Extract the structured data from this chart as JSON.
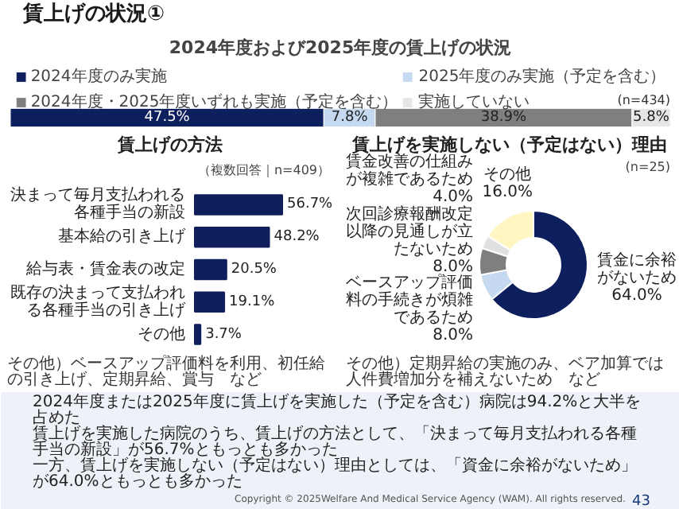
{
  "chart_data": [
    {
      "type": "other",
      "title": "賃上げの状況①"
    },
    {
      "type": "bar",
      "orientation": "horizontal",
      "stacked": true,
      "title": "2024年度および2025年度の賃上げの状況",
      "annotations": [
        "(n=434)"
      ],
      "categories": [
        null
      ],
      "legend": "top",
      "series": [
        {
          "name": "2024年度のみ実施",
          "color": "#0d1f5c",
          "values": [
            47.5
          ],
          "value_labels": [
            "47.5%"
          ]
        },
        {
          "name": "2025年度のみ実施（予定を含む）",
          "color": "#c5d9f1",
          "values": [
            7.8
          ],
          "value_labels": [
            "7.8%"
          ]
        },
        {
          "name": "2024年度・2025年度いずれも実施（予定を含む）",
          "color": "#7f7f7f",
          "values": [
            38.9
          ],
          "value_labels": [
            "38.9%"
          ]
        },
        {
          "name": "実施していない",
          "color": "#e6e6e6",
          "values": [
            5.8
          ],
          "value_labels": [
            "5.8%"
          ]
        }
      ]
    },
    {
      "type": "bar",
      "orientation": "horizontal",
      "title": "賃上げの方法",
      "annotations": [
        "（複数回答｜n=409）",
        "その他）ベースアップ評価料を利用、初任給の引き上げ、定期昇給、賞与　など"
      ],
      "categories": [
        "決まって毎月支払われる各種手当の新設",
        "基本給の引き上げ",
        "給与表・賃金表の改定",
        "既存の決まって支払われる各種手当の引き上げ",
        "その他"
      ],
      "values": [
        56.7,
        48.2,
        20.5,
        19.1,
        3.7
      ],
      "color": "#0e1f5b",
      "value_labels": [
        "56.7%",
        "48.2%",
        "20.5%",
        "19.1%",
        "3.7%"
      ]
    },
    {
      "type": "donut",
      "title": "賃上げを実施しない（予定はない）理由",
      "annotations": [
        "(n=25)",
        "その他）定期昇給の実施のみ、ベア加算では人件費増加分を補えないため　など"
      ],
      "categories": [
        "賃金に余裕がないため",
        "ベースアップ評価料の手続きが煩雑であるため",
        "次回診療報酬改定以降の見通しが立たないため",
        "賃金改善の仕組みが複雑であるため",
        "その他"
      ],
      "values": [
        64.0,
        8.0,
        8.0,
        4.0,
        16.0
      ],
      "colors": [
        "#0d1f5c",
        "#c5d9f1",
        "#7f7f7f",
        "#e0e0e0",
        "#fff6c2"
      ],
      "value_labels": [
        "64.0%",
        "8.0%",
        "8.0%",
        "4.0%",
        "16.0%"
      ]
    },
    {
      "type": "other",
      "annotations": [
        "2024年度または2025年度に賃上げを実施した（予定を含む）病院は94.2%と大半を占めた",
        "賃上げを実施した病院のうち、賃上げの方法として、「決まって毎月支払われる各種手当の新設」が56.7%ともっとも多かった",
        "一方、賃上げを実施しない（予定はない）理由としては、「資金に余裕がないため」が64.0%ともっとも多かった",
        "Copyright © 2025Welfare And Medical Service Agency (WAM). All rights reserved.",
        "43"
      ]
    }
  ]
}
